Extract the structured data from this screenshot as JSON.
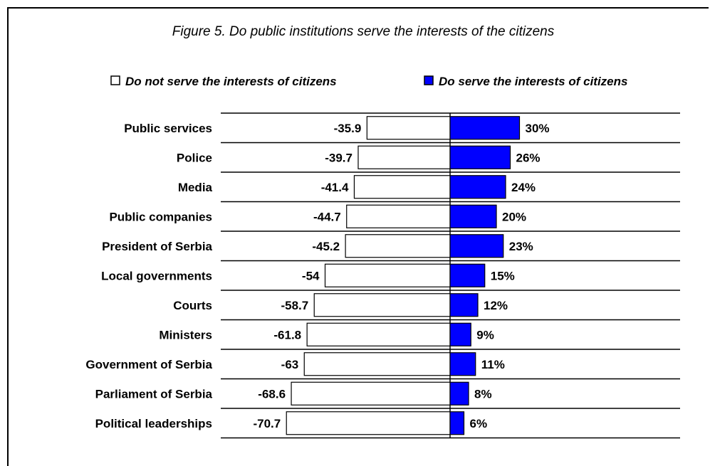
{
  "chart_data": {
    "type": "bar",
    "orientation": "horizontal-diverging",
    "title": "Figure 5. Do public institutions serve the interests of the citizens",
    "legend_placement": "top",
    "categories": [
      "Public services",
      "Police",
      "Media",
      "Public companies",
      "President of Serbia",
      "Local governments",
      "Courts",
      "Ministers",
      "Government of Serbia",
      "Parliament of Serbia",
      "Political leaderships"
    ],
    "series": [
      {
        "name": "Do not serve the interests of citizens",
        "color": "#ffffff",
        "values": [
          -35.9,
          -39.7,
          -41.4,
          -44.7,
          -45.2,
          -54,
          -58.7,
          -61.8,
          -63,
          -68.6,
          -70.7
        ],
        "labels": [
          "-35.9",
          "-39.7",
          "-41.4",
          "-44.7",
          "-45.2",
          "-54",
          "-58.7",
          "-61.8",
          "-63",
          "-68.6",
          "-70.7"
        ]
      },
      {
        "name": "Do serve the interests of citizens",
        "color": "#0000ff",
        "values": [
          30,
          26,
          24,
          20,
          23,
          15,
          12,
          9,
          11,
          8,
          6
        ],
        "labels": [
          "30%",
          "26%",
          "24%",
          "20%",
          "23%",
          "15%",
          "12%",
          "9%",
          "11%",
          "8%",
          "6%"
        ]
      }
    ],
    "xlim": [
      -90,
      90
    ],
    "grid": true
  }
}
